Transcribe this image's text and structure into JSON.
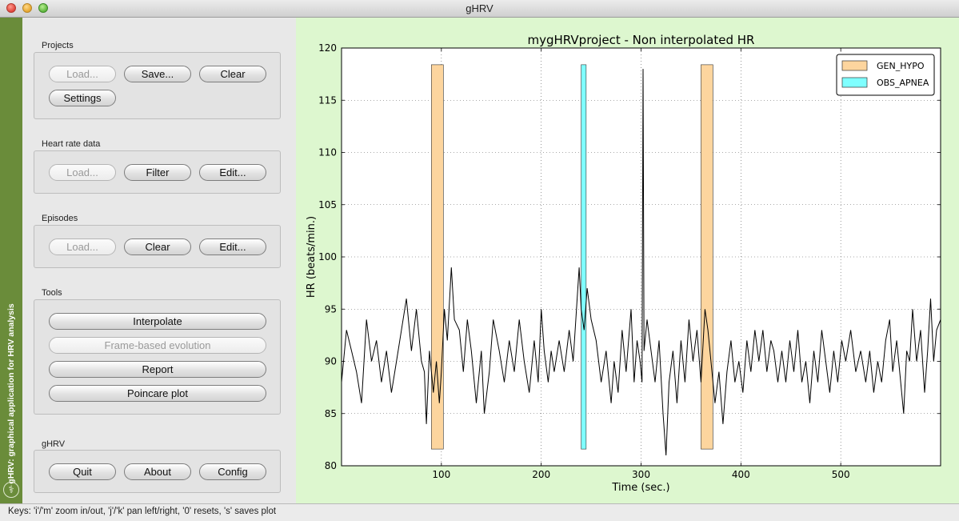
{
  "window": {
    "title": "gHRV"
  },
  "sidebar": {
    "text": "gHRV: graphical application for HRV analysis"
  },
  "groups": {
    "projects": {
      "label": "Projects",
      "load": "Load...",
      "save": "Save...",
      "clear": "Clear",
      "settings": "Settings"
    },
    "heart_rate": {
      "label": "Heart rate data",
      "load": "Load...",
      "filter": "Filter",
      "edit": "Edit..."
    },
    "episodes": {
      "label": "Episodes",
      "load": "Load...",
      "clear": "Clear",
      "edit": "Edit..."
    },
    "tools": {
      "label": "Tools",
      "interpolate": "Interpolate",
      "frame": "Frame-based evolution",
      "report": "Report",
      "poincare": "Poincare plot"
    },
    "ghrv": {
      "label": "gHRV",
      "quit": "Quit",
      "about": "About",
      "config": "Config"
    }
  },
  "status": {
    "text": "Keys: 'i'/'m' zoom in/out, 'j'/'k' pan left/right, '0' resets, 's' saves plot"
  },
  "colors": {
    "gen_hypo": "#fdd59e",
    "obs_apnea": "#7fffff",
    "plot_bg": "#ddf7cf",
    "sidebar": "#6a8c3a"
  },
  "chart_data": {
    "type": "line",
    "title": "mygHRVproject - Non interpolated HR",
    "xlabel": "Time (sec.)",
    "ylabel": "HR (beats/min.)",
    "xlim": [
      0,
      600
    ],
    "ylim": [
      80,
      120
    ],
    "xticks": [
      100,
      200,
      300,
      400,
      500
    ],
    "yticks": [
      80,
      85,
      90,
      95,
      100,
      105,
      110,
      115,
      120
    ],
    "grid": true,
    "legend_position": "top-right",
    "legend": [
      {
        "name": "GEN_HYPO",
        "color": "#fdd59e"
      },
      {
        "name": "OBS_APNEA",
        "color": "#7fffff"
      }
    ],
    "episodes": [
      {
        "type": "GEN_HYPO",
        "start": 90,
        "end": 102
      },
      {
        "type": "OBS_APNEA",
        "start": 240,
        "end": 245
      },
      {
        "type": "GEN_HYPO",
        "start": 360,
        "end": 372
      }
    ],
    "series": [
      {
        "values": [
          [
            0,
            88
          ],
          [
            5,
            93
          ],
          [
            10,
            91
          ],
          [
            15,
            89
          ],
          [
            20,
            86
          ],
          [
            25,
            94
          ],
          [
            30,
            90
          ],
          [
            35,
            92
          ],
          [
            40,
            88
          ],
          [
            45,
            91
          ],
          [
            50,
            87
          ],
          [
            55,
            90
          ],
          [
            60,
            93
          ],
          [
            65,
            96
          ],
          [
            70,
            91
          ],
          [
            75,
            95
          ],
          [
            80,
            90
          ],
          [
            83,
            89
          ],
          [
            85,
            84
          ],
          [
            88,
            91
          ],
          [
            92,
            87
          ],
          [
            95,
            90
          ],
          [
            98,
            86
          ],
          [
            100,
            89
          ],
          [
            103,
            95
          ],
          [
            106,
            92
          ],
          [
            110,
            99
          ],
          [
            113,
            94
          ],
          [
            118,
            93
          ],
          [
            122,
            89
          ],
          [
            126,
            94
          ],
          [
            130,
            91
          ],
          [
            135,
            86
          ],
          [
            140,
            91
          ],
          [
            143,
            85
          ],
          [
            148,
            89
          ],
          [
            152,
            94
          ],
          [
            158,
            91
          ],
          [
            163,
            88
          ],
          [
            168,
            92
          ],
          [
            173,
            89
          ],
          [
            178,
            94
          ],
          [
            183,
            90
          ],
          [
            188,
            87
          ],
          [
            193,
            92
          ],
          [
            197,
            88
          ],
          [
            200,
            95
          ],
          [
            203,
            91
          ],
          [
            207,
            88
          ],
          [
            210,
            91
          ],
          [
            213,
            89
          ],
          [
            218,
            92
          ],
          [
            223,
            89
          ],
          [
            228,
            93
          ],
          [
            232,
            90
          ],
          [
            236,
            96
          ],
          [
            238,
            99
          ],
          [
            240,
            95
          ],
          [
            243,
            93
          ],
          [
            246,
            97
          ],
          [
            250,
            94
          ],
          [
            255,
            92
          ],
          [
            260,
            88
          ],
          [
            265,
            91
          ],
          [
            270,
            86
          ],
          [
            273,
            90
          ],
          [
            277,
            87
          ],
          [
            281,
            93
          ],
          [
            285,
            89
          ],
          [
            290,
            95
          ],
          [
            293,
            88
          ],
          [
            296,
            92
          ],
          [
            299,
            90
          ],
          [
            301,
            88
          ],
          [
            302,
            118
          ],
          [
            303,
            91
          ],
          [
            306,
            94
          ],
          [
            310,
            91
          ],
          [
            314,
            88
          ],
          [
            318,
            92
          ],
          [
            322,
            85
          ],
          [
            325,
            81
          ],
          [
            328,
            88
          ],
          [
            332,
            91
          ],
          [
            336,
            86
          ],
          [
            340,
            92
          ],
          [
            344,
            88
          ],
          [
            348,
            94
          ],
          [
            352,
            90
          ],
          [
            356,
            93
          ],
          [
            360,
            88
          ],
          [
            364,
            95
          ],
          [
            367,
            93
          ],
          [
            370,
            90
          ],
          [
            374,
            86
          ],
          [
            378,
            89
          ],
          [
            382,
            84
          ],
          [
            386,
            89
          ],
          [
            390,
            92
          ],
          [
            394,
            88
          ],
          [
            398,
            90
          ],
          [
            402,
            87
          ],
          [
            406,
            92
          ],
          [
            410,
            89
          ],
          [
            414,
            93
          ],
          [
            418,
            90
          ],
          [
            422,
            93
          ],
          [
            426,
            89
          ],
          [
            430,
            92
          ],
          [
            433,
            91
          ],
          [
            437,
            88
          ],
          [
            441,
            91
          ],
          [
            445,
            88
          ],
          [
            449,
            92
          ],
          [
            453,
            89
          ],
          [
            457,
            93
          ],
          [
            461,
            88
          ],
          [
            465,
            90
          ],
          [
            469,
            86
          ],
          [
            473,
            91
          ],
          [
            477,
            88
          ],
          [
            481,
            93
          ],
          [
            485,
            90
          ],
          [
            489,
            87
          ],
          [
            493,
            91
          ],
          [
            497,
            88
          ],
          [
            501,
            92
          ],
          [
            505,
            90
          ],
          [
            510,
            93
          ],
          [
            515,
            89
          ],
          [
            520,
            91
          ],
          [
            525,
            88
          ],
          [
            529,
            91
          ],
          [
            533,
            87
          ],
          [
            537,
            90
          ],
          [
            541,
            88
          ],
          [
            545,
            92
          ],
          [
            549,
            94
          ],
          [
            552,
            89
          ],
          [
            556,
            92
          ],
          [
            560,
            88
          ],
          [
            563,
            85
          ],
          [
            566,
            91
          ],
          [
            569,
            90
          ],
          [
            572,
            95
          ],
          [
            576,
            90
          ],
          [
            580,
            93
          ],
          [
            584,
            87
          ],
          [
            587,
            91
          ],
          [
            590,
            96
          ],
          [
            593,
            90
          ],
          [
            596,
            93
          ],
          [
            600,
            94
          ]
        ]
      }
    ]
  }
}
